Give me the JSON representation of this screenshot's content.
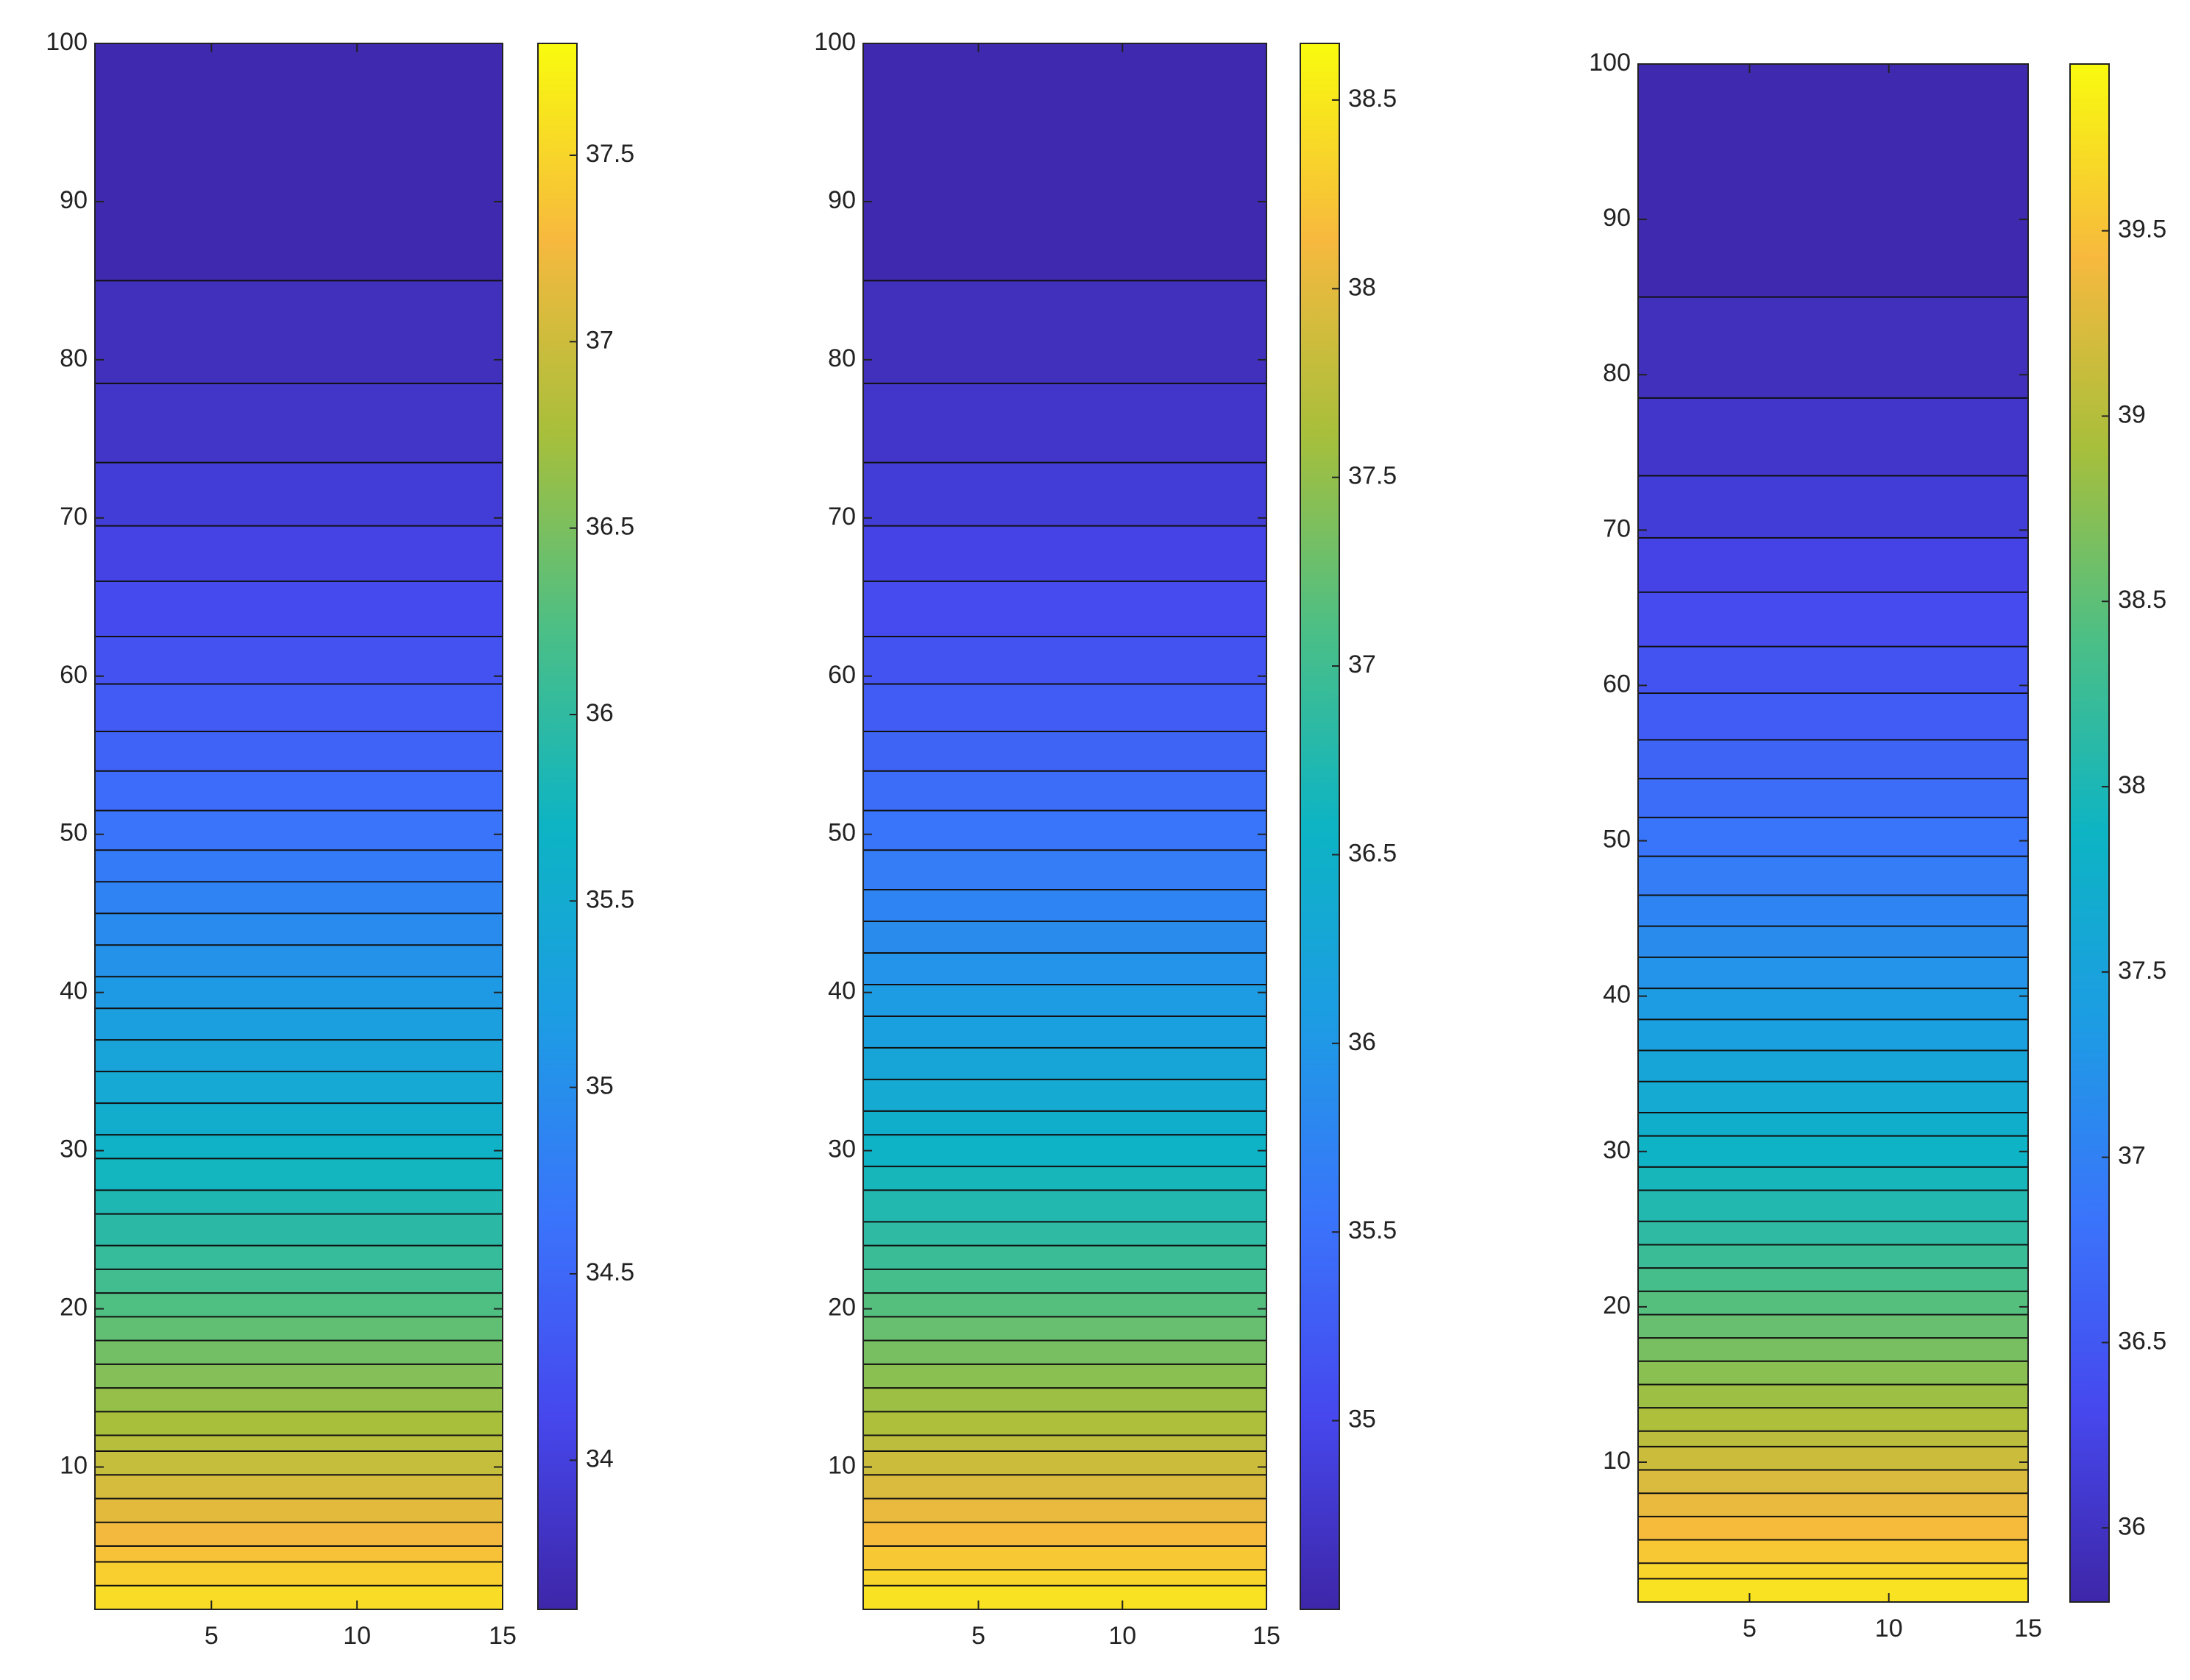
{
  "chart_data": [
    {
      "type": "contour",
      "colormap": "parula",
      "xlim": [
        1,
        15
      ],
      "xticks": [
        5,
        10,
        15
      ],
      "ylim": [
        1,
        100
      ],
      "yticks": [
        10,
        20,
        30,
        40,
        50,
        60,
        70,
        80,
        90,
        100
      ],
      "level_y": [
        85,
        78.5,
        73.5,
        69.5,
        66,
        62.5,
        59.5,
        56.5,
        54,
        51.5,
        49,
        47,
        45,
        43,
        41,
        39,
        37,
        35,
        33,
        31,
        29.5,
        27.5,
        26,
        24,
        22.5,
        21,
        19.5,
        18,
        16.5,
        15,
        13.5,
        12,
        11,
        9.5,
        8,
        6.5,
        5,
        4,
        2.5
      ],
      "levels": [
        33.7,
        33.8,
        33.9,
        34.0,
        34.1,
        34.2,
        34.3,
        34.4,
        34.5,
        34.6,
        34.7,
        34.8,
        34.9,
        35.0,
        35.1,
        35.2,
        35.3,
        35.4,
        35.5,
        35.6,
        35.7,
        35.8,
        35.9,
        36.0,
        36.1,
        36.2,
        36.3,
        36.4,
        36.5,
        36.6,
        36.7,
        36.8,
        36.9,
        37.0,
        37.1,
        37.2,
        37.3,
        37.4,
        37.5
      ],
      "clim": [
        33.6,
        37.8
      ],
      "cticks": [
        34,
        34.5,
        35,
        35.5,
        36,
        36.5,
        37,
        37.5
      ]
    },
    {
      "type": "contour",
      "colormap": "parula",
      "xlim": [
        1,
        15
      ],
      "xticks": [
        5,
        10,
        15
      ],
      "ylim": [
        1,
        100
      ],
      "yticks": [
        10,
        20,
        30,
        40,
        50,
        60,
        70,
        80,
        90,
        100
      ],
      "level_y": [
        85,
        78.5,
        73.5,
        69.5,
        66,
        62.5,
        59.5,
        56.5,
        54,
        51.5,
        49,
        46.5,
        44.5,
        42.5,
        40.5,
        38.5,
        36.5,
        34.5,
        32.5,
        31,
        29,
        27.5,
        25.5,
        24,
        22.5,
        21,
        19.5,
        18,
        16.5,
        15,
        13.5,
        12,
        11,
        9.5,
        8,
        6.5,
        5,
        3.5,
        2.5
      ],
      "levels": [
        34.6,
        34.7,
        34.8,
        34.9,
        35.0,
        35.1,
        35.2,
        35.3,
        35.4,
        35.5,
        35.6,
        35.7,
        35.8,
        35.9,
        36.0,
        36.1,
        36.2,
        36.3,
        36.4,
        36.5,
        36.6,
        36.7,
        36.8,
        36.9,
        37.0,
        37.1,
        37.2,
        37.3,
        37.4,
        37.5,
        37.6,
        37.7,
        37.8,
        37.9,
        38.0,
        38.1,
        38.2,
        38.3,
        38.4
      ],
      "clim": [
        34.5,
        38.65
      ],
      "cticks": [
        35,
        35.5,
        36,
        36.5,
        37,
        37.5,
        38,
        38.5
      ]
    },
    {
      "type": "contour",
      "colormap": "parula",
      "xlim": [
        1,
        15
      ],
      "xticks": [
        5,
        10,
        15
      ],
      "ylim": [
        1,
        100
      ],
      "yticks": [
        10,
        20,
        30,
        40,
        50,
        60,
        70,
        80,
        90,
        100
      ],
      "level_y": [
        85,
        78.5,
        73.5,
        69.5,
        66,
        62.5,
        59.5,
        56.5,
        54,
        51.5,
        49,
        46.5,
        44.5,
        42.5,
        40.5,
        38.5,
        36.5,
        34.5,
        32.5,
        31,
        29,
        27.5,
        25.5,
        24,
        22.5,
        21,
        19.5,
        18,
        16.5,
        15,
        13.5,
        12,
        11,
        9.5,
        8,
        6.5,
        5,
        3.5,
        2.5
      ],
      "levels": [
        35.9,
        36.0,
        36.1,
        36.2,
        36.3,
        36.4,
        36.5,
        36.6,
        36.7,
        36.8,
        36.9,
        37.0,
        37.1,
        37.2,
        37.3,
        37.4,
        37.5,
        37.6,
        37.7,
        37.8,
        37.9,
        38.0,
        38.1,
        38.2,
        38.3,
        38.4,
        38.5,
        38.6,
        38.7,
        38.8,
        38.9,
        39.0,
        39.1,
        39.2,
        39.3,
        39.4,
        39.5,
        39.6,
        39.7
      ],
      "clim": [
        35.8,
        39.95
      ],
      "cticks": [
        36,
        36.5,
        37,
        37.5,
        38,
        38.5,
        39,
        39.5
      ]
    }
  ]
}
